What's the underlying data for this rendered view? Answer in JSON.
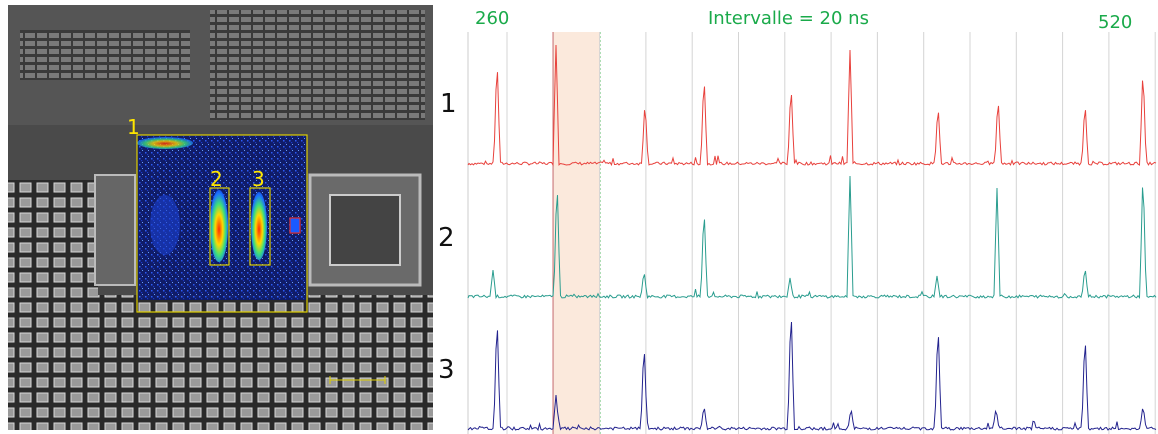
{
  "image": {
    "labels": [
      "1",
      "2",
      "3"
    ]
  },
  "traces": {
    "start": "260",
    "interval": "Intervalle = 20 ns",
    "end": "520",
    "labels": [
      "1",
      "2",
      "3"
    ]
  }
}
